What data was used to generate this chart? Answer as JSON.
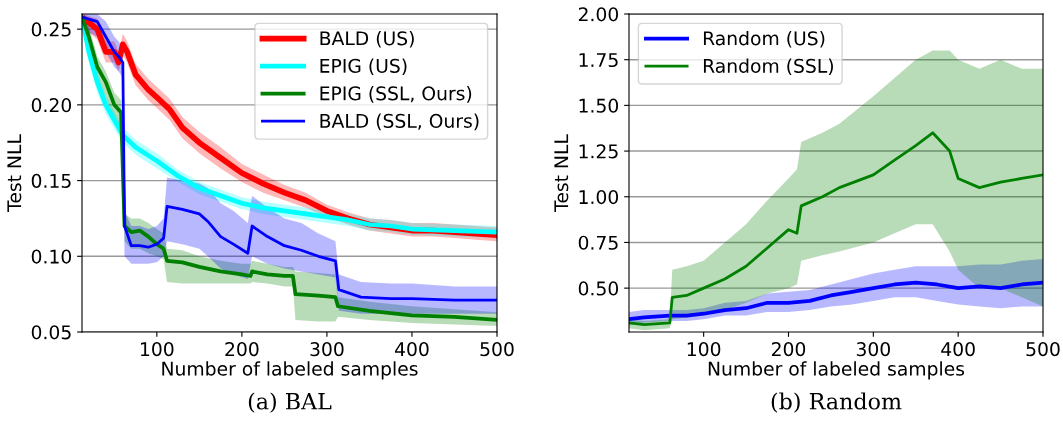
{
  "chart_data": [
    {
      "type": "line",
      "title": "(a) BAL",
      "xlabel": "Number of labeled samples",
      "ylabel": "Test NLL",
      "xlim": [
        12,
        500
      ],
      "ylim": [
        0.05,
        0.26
      ],
      "xticks": [
        100,
        200,
        300,
        400,
        500
      ],
      "yticks": [
        0.05,
        {
          "value": 0.1,
          "label": "0.10"
        },
        0.15,
        {
          "value": 0.2,
          "label": "0.20"
        },
        0.25
      ],
      "grid": "y",
      "legend": "top right",
      "tick_labels": true,
      "series": [
        {
          "name": "BALD (US)",
          "color": "#ff0000",
          "x": [
            12,
            30,
            40,
            50,
            55,
            60,
            65,
            75,
            90,
            100,
            115,
            130,
            150,
            175,
            200,
            225,
            250,
            275,
            300,
            325,
            350,
            375,
            400,
            425,
            450,
            475,
            500
          ],
          "values": [
            0.258,
            0.25,
            0.235,
            0.235,
            0.228,
            0.24,
            0.235,
            0.22,
            0.21,
            0.205,
            0.197,
            0.185,
            0.175,
            0.165,
            0.155,
            0.148,
            0.142,
            0.137,
            0.13,
            0.125,
            0.121,
            0.119,
            0.117,
            0.117,
            0.116,
            0.115,
            0.114
          ],
          "lower": [
            0.252,
            0.243,
            0.228,
            0.228,
            0.222,
            0.233,
            0.228,
            0.213,
            0.203,
            0.198,
            0.19,
            0.178,
            0.168,
            0.158,
            0.149,
            0.142,
            0.137,
            0.132,
            0.126,
            0.121,
            0.117,
            0.115,
            0.113,
            0.113,
            0.112,
            0.111,
            0.11
          ],
          "upper": [
            0.26,
            0.257,
            0.242,
            0.242,
            0.235,
            0.247,
            0.242,
            0.227,
            0.217,
            0.212,
            0.204,
            0.192,
            0.182,
            0.172,
            0.161,
            0.154,
            0.147,
            0.142,
            0.134,
            0.129,
            0.125,
            0.124,
            0.122,
            0.122,
            0.121,
            0.12,
            0.119
          ]
        },
        {
          "name": "EPIG (US)",
          "color": "#00ffff",
          "x": [
            12,
            20,
            30,
            40,
            50,
            60,
            75,
            100,
            125,
            150,
            175,
            200,
            225,
            250,
            275,
            300,
            325,
            350,
            375,
            400,
            450,
            500
          ],
          "values": [
            0.258,
            0.235,
            0.215,
            0.2,
            0.19,
            0.18,
            0.172,
            0.163,
            0.153,
            0.145,
            0.14,
            0.135,
            0.132,
            0.13,
            0.128,
            0.126,
            0.124,
            0.121,
            0.12,
            0.118,
            0.117,
            0.116
          ],
          "lower": [
            0.252,
            0.228,
            0.208,
            0.194,
            0.184,
            0.175,
            0.167,
            0.158,
            0.149,
            0.141,
            0.136,
            0.131,
            0.128,
            0.126,
            0.124,
            0.122,
            0.12,
            0.117,
            0.116,
            0.114,
            0.113,
            0.112
          ],
          "upper": [
            0.26,
            0.242,
            0.222,
            0.206,
            0.196,
            0.185,
            0.177,
            0.168,
            0.157,
            0.149,
            0.144,
            0.139,
            0.136,
            0.134,
            0.132,
            0.13,
            0.128,
            0.125,
            0.124,
            0.122,
            0.121,
            0.12
          ]
        },
        {
          "name": "EPIG (SSL, Ours)",
          "color": "#008000",
          "x": [
            12,
            20,
            30,
            40,
            50,
            58,
            62,
            70,
            80,
            90,
            100,
            108,
            112,
            130,
            150,
            175,
            200,
            210,
            212,
            230,
            250,
            260,
            263,
            290,
            310,
            313,
            350,
            400,
            450,
            500
          ],
          "values": [
            0.258,
            0.245,
            0.225,
            0.215,
            0.2,
            0.195,
            0.12,
            0.116,
            0.117,
            0.113,
            0.108,
            0.105,
            0.097,
            0.096,
            0.093,
            0.09,
            0.088,
            0.087,
            0.09,
            0.088,
            0.087,
            0.087,
            0.075,
            0.074,
            0.073,
            0.067,
            0.064,
            0.061,
            0.06,
            0.058
          ],
          "lower": [
            0.25,
            0.235,
            0.215,
            0.205,
            0.19,
            0.185,
            0.11,
            0.105,
            0.105,
            0.102,
            0.1,
            0.098,
            0.083,
            0.082,
            0.082,
            0.082,
            0.082,
            0.082,
            0.083,
            0.082,
            0.08,
            0.08,
            0.058,
            0.057,
            0.057,
            0.06,
            0.058,
            0.056,
            0.055,
            0.054
          ],
          "upper": [
            0.26,
            0.252,
            0.232,
            0.222,
            0.208,
            0.203,
            0.128,
            0.125,
            0.125,
            0.122,
            0.118,
            0.115,
            0.105,
            0.104,
            0.1,
            0.097,
            0.095,
            0.095,
            0.097,
            0.095,
            0.093,
            0.093,
            0.09,
            0.089,
            0.088,
            0.073,
            0.07,
            0.067,
            0.065,
            0.063
          ]
        },
        {
          "name": "BALD (SSL, Ours)",
          "color": "#0000ff",
          "x": [
            12,
            30,
            40,
            50,
            55,
            60,
            62,
            70,
            80,
            90,
            100,
            108,
            112,
            130,
            150,
            160,
            175,
            190,
            207,
            212,
            230,
            250,
            270,
            290,
            310,
            314,
            340,
            375,
            400,
            450,
            500
          ],
          "values": [
            0.258,
            0.255,
            0.245,
            0.235,
            0.232,
            0.228,
            0.12,
            0.107,
            0.107,
            0.106,
            0.108,
            0.112,
            0.133,
            0.131,
            0.128,
            0.123,
            0.113,
            0.108,
            0.102,
            0.12,
            0.113,
            0.107,
            0.104,
            0.1,
            0.097,
            0.078,
            0.073,
            0.072,
            0.072,
            0.071,
            0.071
          ],
          "lower": [
            0.25,
            0.245,
            0.235,
            0.225,
            0.222,
            0.218,
            0.1,
            0.095,
            0.095,
            0.095,
            0.096,
            0.1,
            0.11,
            0.108,
            0.105,
            0.1,
            0.092,
            0.088,
            0.085,
            0.1,
            0.095,
            0.092,
            0.09,
            0.088,
            0.086,
            0.064,
            0.062,
            0.062,
            0.062,
            0.062,
            0.062
          ],
          "upper": [
            0.26,
            0.26,
            0.255,
            0.245,
            0.242,
            0.238,
            0.13,
            0.12,
            0.12,
            0.118,
            0.12,
            0.125,
            0.152,
            0.15,
            0.148,
            0.145,
            0.135,
            0.13,
            0.122,
            0.14,
            0.132,
            0.125,
            0.122,
            0.115,
            0.11,
            0.088,
            0.083,
            0.082,
            0.082,
            0.08,
            0.08
          ]
        }
      ]
    },
    {
      "type": "line",
      "title": "(b) Random",
      "xlabel": "Number of labeled samples",
      "ylabel": "Test NLL",
      "xlim": [
        12,
        500
      ],
      "ylim": [
        0.26,
        2.0
      ],
      "xticks": [
        100,
        200,
        300,
        400,
        500
      ],
      "yticks": [
        {
          "value": 0.5,
          "label": "0.50"
        },
        {
          "value": 0.75,
          "label": "0.75"
        },
        {
          "value": 1.0,
          "label": "1.00"
        },
        {
          "value": 1.25,
          "label": "1.25"
        },
        {
          "value": 1.5,
          "label": "1.50"
        },
        {
          "value": 1.75,
          "label": "1.75"
        },
        {
          "value": 2.0,
          "label": "2.00"
        }
      ],
      "grid": "y",
      "legend": "top left",
      "series": [
        {
          "name": "Random (US)",
          "color": "#0000ff",
          "x": [
            12,
            30,
            60,
            80,
            100,
            125,
            150,
            175,
            200,
            225,
            250,
            275,
            300,
            325,
            350,
            375,
            400,
            425,
            450,
            475,
            500
          ],
          "values": [
            0.33,
            0.34,
            0.35,
            0.35,
            0.36,
            0.38,
            0.39,
            0.42,
            0.42,
            0.43,
            0.46,
            0.48,
            0.5,
            0.52,
            0.53,
            0.52,
            0.5,
            0.51,
            0.5,
            0.52,
            0.53
          ],
          "lower": [
            0.3,
            0.31,
            0.32,
            0.32,
            0.33,
            0.35,
            0.35,
            0.37,
            0.37,
            0.38,
            0.4,
            0.41,
            0.43,
            0.45,
            0.45,
            0.43,
            0.41,
            0.4,
            0.39,
            0.4,
            0.4
          ],
          "upper": [
            0.37,
            0.38,
            0.38,
            0.38,
            0.39,
            0.42,
            0.43,
            0.47,
            0.48,
            0.49,
            0.52,
            0.55,
            0.58,
            0.6,
            0.62,
            0.62,
            0.62,
            0.63,
            0.63,
            0.65,
            0.66
          ]
        },
        {
          "name": "Random (SSL)",
          "color": "#008000",
          "x": [
            12,
            30,
            60,
            63,
            80,
            100,
            125,
            150,
            175,
            200,
            210,
            215,
            240,
            260,
            300,
            325,
            350,
            370,
            390,
            400,
            425,
            450,
            475,
            500
          ],
          "values": [
            0.31,
            0.3,
            0.31,
            0.45,
            0.46,
            0.5,
            0.55,
            0.62,
            0.72,
            0.82,
            0.8,
            0.95,
            1.0,
            1.05,
            1.12,
            1.2,
            1.28,
            1.35,
            1.25,
            1.1,
            1.05,
            1.08,
            1.1,
            1.12
          ],
          "lower": [
            0.28,
            0.27,
            0.28,
            0.33,
            0.34,
            0.35,
            0.38,
            0.42,
            0.47,
            0.5,
            0.52,
            0.65,
            0.68,
            0.7,
            0.75,
            0.8,
            0.85,
            0.85,
            0.7,
            0.6,
            0.5,
            0.5,
            0.45,
            0.4
          ],
          "upper": [
            0.33,
            0.32,
            0.33,
            0.6,
            0.62,
            0.65,
            0.75,
            0.85,
            0.98,
            1.1,
            1.15,
            1.3,
            1.35,
            1.4,
            1.55,
            1.65,
            1.75,
            1.8,
            1.8,
            1.75,
            1.7,
            1.75,
            1.7,
            1.7
          ]
        }
      ]
    }
  ]
}
